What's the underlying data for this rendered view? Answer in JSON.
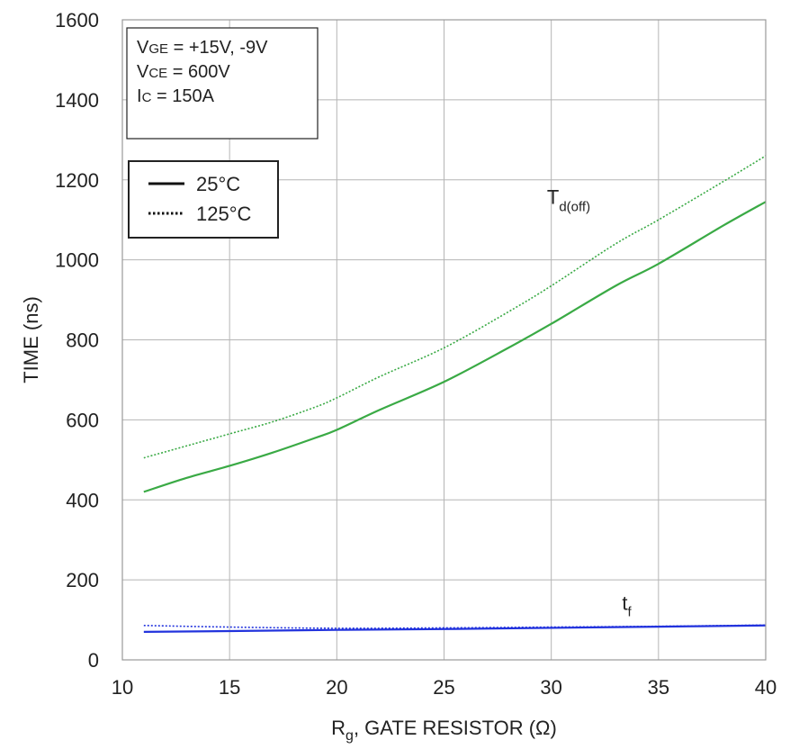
{
  "chart_data": {
    "type": "line",
    "xlabel": {
      "main": "R",
      "sub": "g",
      "rest": ", GATE RESISTOR (Ω)"
    },
    "ylabel": "TIME (ns)",
    "xlim": [
      10,
      40
    ],
    "ylim": [
      0,
      1600
    ],
    "xticks": [
      10,
      15,
      20,
      25,
      30,
      35,
      40
    ],
    "yticks": [
      0,
      200,
      400,
      600,
      800,
      1000,
      1200,
      1400,
      1600
    ],
    "grid": true,
    "conditions": [
      {
        "main": "V",
        "sub": "GE",
        "rest": " = +15V, -9V"
      },
      {
        "main": "V",
        "sub": "CE",
        "rest": " = 600V"
      },
      {
        "main": "I",
        "sub": "C",
        "rest": " = 150A"
      }
    ],
    "legend": [
      {
        "label": "25°C",
        "style": "solid"
      },
      {
        "label": "125°C",
        "style": "dotted"
      }
    ],
    "annotations": [
      {
        "main": "T",
        "sub": "d(off)",
        "near_series": "Td(off)",
        "at_x": 29.8,
        "at_y": 1140
      },
      {
        "main": "t",
        "sub": "f",
        "near_series": "tf",
        "at_x": 33.3,
        "at_y": 125
      }
    ],
    "series": [
      {
        "name": "Td(off) 25°C",
        "group": "Td(off)",
        "temp": "25°C",
        "style": "solid",
        "color": "#3aaa45",
        "x": [
          11,
          13,
          15,
          17,
          19,
          20,
          22,
          25,
          28,
          30,
          33,
          35,
          38,
          40
        ],
        "y": [
          420,
          455,
          485,
          518,
          555,
          575,
          625,
          695,
          780,
          840,
          935,
          990,
          1085,
          1145
        ]
      },
      {
        "name": "Td(off) 125°C",
        "group": "Td(off)",
        "temp": "125°C",
        "style": "dotted",
        "color": "#3aaa45",
        "x": [
          11,
          13,
          15,
          17,
          19,
          20,
          22,
          25,
          28,
          30,
          33,
          35,
          38,
          40
        ],
        "y": [
          505,
          535,
          565,
          595,
          632,
          655,
          708,
          780,
          870,
          935,
          1040,
          1100,
          1195,
          1260
        ]
      },
      {
        "name": "tf 25°C",
        "group": "tf",
        "temp": "25°C",
        "style": "solid",
        "color": "#2233dd",
        "x": [
          11,
          15,
          20,
          25,
          30,
          35,
          40
        ],
        "y": [
          70,
          72,
          75,
          77,
          80,
          83,
          86
        ]
      },
      {
        "name": "tf 125°C",
        "group": "tf",
        "temp": "125°C",
        "style": "dotted",
        "color": "#2233dd",
        "x": [
          11,
          15,
          20,
          25,
          30,
          35,
          40
        ],
        "y": [
          86,
          82,
          79,
          80,
          82,
          84,
          87
        ]
      }
    ]
  }
}
